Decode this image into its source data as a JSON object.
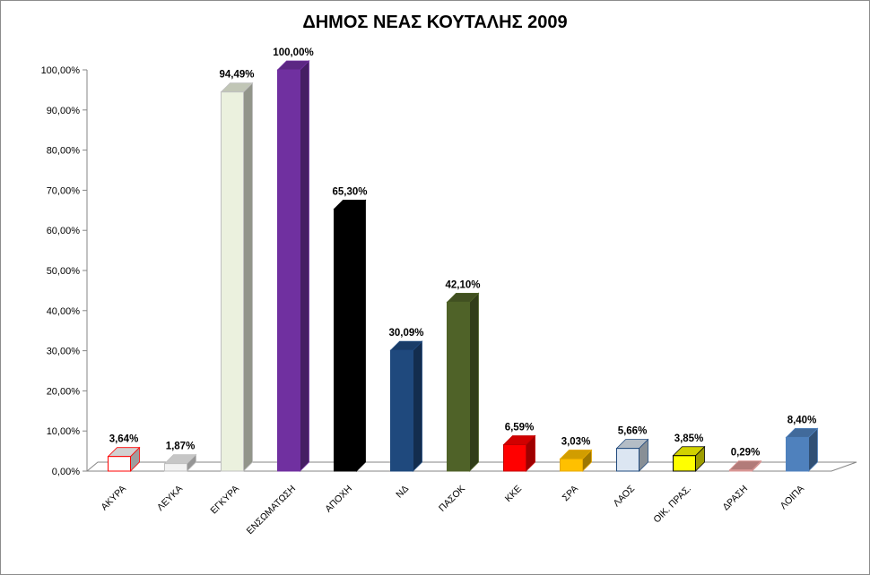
{
  "chart_data": {
    "type": "bar",
    "title": "ΔΗΜΟΣ ΝΕΑΣ ΚΟΥΤΑΛΗΣ 2009",
    "xlabel": "",
    "ylabel": "",
    "ylim": [
      0,
      100
    ],
    "grid": false,
    "legend": "none",
    "three_d": true,
    "y_ticks": [
      "0,00%",
      "10,00%",
      "20,00%",
      "30,00%",
      "40,00%",
      "50,00%",
      "60,00%",
      "70,00%",
      "80,00%",
      "90,00%",
      "100,00%"
    ],
    "categories": [
      "ΑΚΥΡΑ",
      "ΛΕΥΚΑ",
      "ΕΓΚΥΡΑ",
      "ΕΝΣΩΜΑΤΩΣΗ",
      "ΑΠΟΧΗ",
      "ΝΔ",
      "ΠΑΣΟΚ",
      "ΚΚΕ",
      "ΣΡΑ",
      "ΛΑΟΣ",
      "ΟΙΚ. ΠΡΑΣ.",
      "ΔΡΑΣΗ",
      "ΛΟΙΠΑ"
    ],
    "values": [
      3.64,
      1.87,
      94.49,
      100.0,
      65.3,
      30.09,
      42.1,
      6.59,
      3.03,
      5.66,
      3.85,
      0.29,
      8.4
    ],
    "data_labels": [
      "3,64%",
      "1,87%",
      "94,49%",
      "100,00%",
      "65,30%",
      "30,09%",
      "42,10%",
      "6,59%",
      "3,03%",
      "5,66%",
      "3,85%",
      "0,29%",
      "8,40%"
    ],
    "colors": [
      "#ffffff",
      "#f2f2f2",
      "#ebf1de",
      "#7030a0",
      "#000000",
      "#1f497d",
      "#4f6228",
      "#ff0000",
      "#ffc000",
      "#dce6f2",
      "#ffff00",
      "#d99694",
      "#4f81bd"
    ],
    "edge_colors": [
      "#ff0000",
      "#bfbfbf",
      "#bfbfbf",
      "#7030a0",
      "#000000",
      "#1f497d",
      "#4f6228",
      "#c00000",
      "#e6a800",
      "#1f497d",
      "#000000",
      "#d99694",
      "#4f81bd"
    ]
  }
}
